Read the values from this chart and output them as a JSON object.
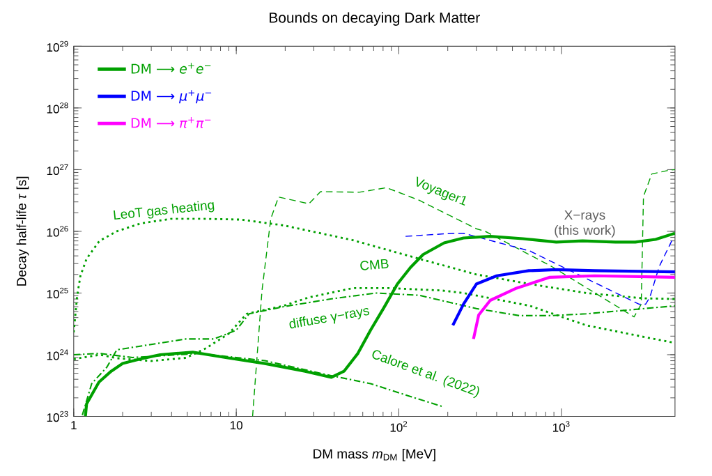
{
  "chart_data": {
    "type": "line",
    "title": "Bounds on decaying Dark Matter",
    "xlabel": "DM mass *m*$_{DM}$ [MeV]",
    "ylabel": "Decay half-life *τ* [s]",
    "log": "xy",
    "xlim": [
      1,
      5000
    ],
    "ylim": [
      1e+23,
      1e+29
    ],
    "xticks": [
      1,
      10,
      {
        "value": 100,
        "label": "10$^{2}$"
      },
      {
        "value": 1000,
        "label": "10$^{3}$"
      }
    ],
    "yticks": [
      {
        "value": 1e+23,
        "label": "10$^{23}$"
      },
      {
        "value": 1e+24,
        "label": "10$^{24}$"
      },
      {
        "value": 1e+25,
        "label": "10$^{25}$"
      },
      {
        "value": 1e+26,
        "label": "10$^{26}$"
      },
      {
        "value": 1e+27,
        "label": "10$^{27}$"
      },
      {
        "value": 1e+28,
        "label": "10$^{28}$"
      },
      {
        "value": 1e+29,
        "label": "10$^{29}$"
      }
    ],
    "legend": "top left",
    "series": [
      {
        "name": "DM ⟶ *e*$^{+}$*e*$^{−}$",
        "color": "#00a000",
        "line_style": "solid",
        "x": [
          1.18,
          1.2,
          1.43,
          1.7,
          2.0,
          2.55,
          3.4,
          5.4,
          8.6,
          15,
          26.5,
          38.5,
          46,
          56,
          67,
          81,
          98,
          118,
          141,
          190,
          250,
          365,
          580,
          930,
          1350,
          2150,
          2850,
          3800,
          5000
        ],
        "values": [
          1e+23,
          1.6e+23,
          3.6e+23,
          5.4e+23,
          7.2e+23,
          8.5e+23,
          1e+24,
          1.1e+24,
          9e+23,
          7.2e+23,
          5.4e+23,
          4.3e+23,
          5.4e+23,
          1.05e+24,
          2.5e+24,
          5.8e+24,
          1.4e+25,
          2.6e+25,
          4.2e+25,
          6.5e+25,
          7.8e+25,
          8.3e+25,
          7.6e+25,
          6.7e+25,
          7e+25,
          6.7e+25,
          6.7e+25,
          7.4e+25,
          9.3e+25
        ]
      },
      {
        "name": "DM ⟶ *μ*$^{+}$*μ*$^{−}$",
        "color": "#0000ff",
        "line_style": "solid",
        "x": [
          215,
          250,
          300,
          400,
          630,
          930,
          1600,
          5000
        ],
        "values": [
          3e+24,
          6.6e+24,
          1.4e+25,
          1.9e+25,
          2.3e+25,
          2.4e+25,
          2.3e+25,
          2.2e+25
        ]
      },
      {
        "name": "DM ⟶ *π*$^{+}$*π*$^{−}$",
        "color": "#ff00ff",
        "line_style": "solid",
        "x": [
          288,
          310,
          365,
          530,
          850,
          1600,
          5000
        ],
        "values": [
          1.8e+24,
          4.4e+24,
          7.6e+24,
          1.2e+25,
          1.8e+25,
          1.9e+25,
          1.8e+25
        ]
      },
      {
        "color": "#00a000",
        "line_style": "dotted",
        "x": [
          1,
          1.05,
          1.1,
          1.2,
          1.44,
          1.84,
          2.6,
          4,
          6.1,
          10.7,
          19.5,
          52,
          133,
          300,
          640,
          1420,
          3200,
          5000
        ],
        "values": [
          2.3e+24,
          9e+24,
          1.9e+25,
          3.6e+25,
          7e+25,
          1e+26,
          1.35e+26,
          1.6e+26,
          1.6e+26,
          1.55e+26,
          1.25e+26,
          7.2e+25,
          3.6e+25,
          2e+25,
          1.4e+25,
          1e+25,
          8.2e+24,
          8e+24
        ]
      },
      {
        "color": "#00a000",
        "line_style": "dotted",
        "x": [
          1,
          1.45,
          1.84,
          3.0,
          4.9,
          6.5,
          9,
          11.6,
          19.5,
          28,
          52,
          87,
          183,
          250,
          640,
          1420,
          3200,
          5000
        ],
        "values": [
          8.5e+23,
          1e+24,
          8.8e+23,
          7.9e+23,
          8.9e+23,
          1.27e+24,
          2.2e+24,
          4.6e+24,
          6.2e+24,
          8.5e+24,
          1.2e+25,
          1.2e+25,
          1.1e+25,
          1e+25,
          6.2e+24,
          3e+24,
          1.95e+24,
          1.55e+24
        ]
      },
      {
        "color": "#00a000",
        "line_style": "dashdot",
        "x": [
          1.13,
          1.29,
          1.6,
          1.84,
          4.9,
          7.3,
          10,
          12,
          19.5,
          38,
          72,
          133,
          300,
          550,
          870,
          1420,
          3000,
          5000
        ],
        "values": [
          1.05e+23,
          3.4e+23,
          6.3e+23,
          1.2e+24,
          1.8e+24,
          1.8e+24,
          2.5e+24,
          4.6e+24,
          6e+24,
          8e+24,
          1e+25,
          9.2e+24,
          5.6e+24,
          4.3e+24,
          4.3e+24,
          4.6e+24,
          5.5e+24,
          6.2e+24
        ]
      },
      {
        "color": "#00a000",
        "line_style": "dashdot",
        "x": [
          1,
          1.45,
          2.3,
          5.9,
          15,
          38,
          67,
          118,
          185
        ],
        "values": [
          1e+24,
          1.05e+24,
          9e+23,
          1.05e+24,
          8e+23,
          4.6e+23,
          3.4e+23,
          2.1e+23,
          1.45e+23
        ]
      },
      {
        "color": "#00a000",
        "line_style": "dashed",
        "x": [
          12.6,
          14.4,
          16.3,
          18.2,
          28,
          33,
          57,
          84,
          133,
          300,
          340,
          870,
          2800,
          3100,
          3200,
          3600,
          4600,
          5000
        ],
        "values": [
          1e+23,
          1.1e+25,
          1.6e+26,
          3.6e+26,
          2.8e+26,
          4.4e+26,
          4.3e+26,
          5.1e+26,
          3.2e+26,
          1.1e+26,
          1e+26,
          2.7e+25,
          4.1e+24,
          6.6e+24,
          3.7e+26,
          8.5e+26,
          9.8e+26,
          1e+27
        ]
      },
      {
        "color": "#0000ff",
        "line_style": "dashed",
        "x": [
          110,
          215,
          250,
          640,
          3000,
          3300,
          3500,
          4000,
          4800,
          5000
        ],
        "values": [
          8.3e+25,
          9.3e+25,
          9.3e+25,
          4.8e+25,
          6.6e+24,
          6.6e+24,
          8.5e+24,
          2.7e+25,
          7.2e+25,
          7.4e+25
        ]
      }
    ],
    "annotations": [
      "LeoT gas heating",
      "Voyager1",
      "CMB",
      "diffuse γ−rays",
      "Calore et al. (2022)",
      "X−rays (this work)"
    ]
  }
}
